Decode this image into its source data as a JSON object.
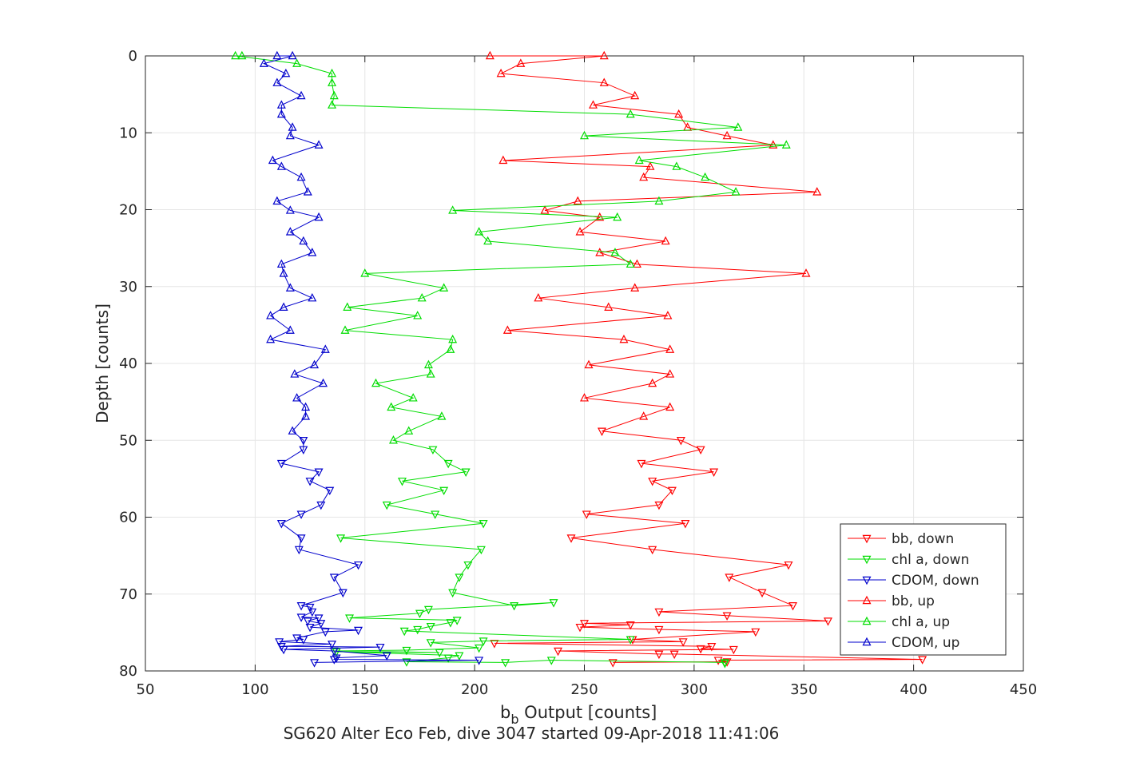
{
  "chart_data": {
    "type": "line",
    "title": "",
    "xlabel_main": "b",
    "xlabel_sub": "b",
    "xlabel_rest": " Output [counts]",
    "ylabel": "Depth [counts]",
    "footer": "SG620 Alter Eco Feb, dive 3047 started 09-Apr-2018 11:41:06",
    "xlim": [
      50,
      450
    ],
    "ylim": [
      0,
      80
    ],
    "y_reversed": true,
    "grid": true,
    "legend_position": "bottom-right",
    "xticks": [
      "50",
      "100",
      "150",
      "200",
      "250",
      "300",
      "350",
      "400",
      "450"
    ],
    "yticks": [
      "0",
      "10",
      "20",
      "30",
      "40",
      "50",
      "60",
      "70",
      "80"
    ],
    "series": [
      {
        "name": "bb, down",
        "color": "#ff0000",
        "marker": "down-triangle",
        "points": [
          [
            207,
            0
          ],
          [
            259,
            0
          ],
          [
            221,
            1
          ],
          [
            212,
            2.3
          ],
          [
            259,
            3.5
          ],
          [
            273,
            5.2
          ],
          [
            254,
            6.4
          ],
          [
            293,
            7.6
          ],
          [
            297,
            9.3
          ],
          [
            315,
            10.4
          ],
          [
            336,
            11.6
          ],
          [
            213,
            13.6
          ],
          [
            280,
            14.4
          ],
          [
            277,
            15.8
          ],
          [
            356,
            17.7
          ],
          [
            247,
            18.9
          ],
          [
            232,
            20.1
          ],
          [
            257,
            21
          ],
          [
            248,
            22.9
          ],
          [
            287,
            24.1
          ],
          [
            257,
            25.6
          ],
          [
            274,
            27.1
          ],
          [
            351,
            28.3
          ],
          [
            273,
            30.2
          ],
          [
            229,
            31.5
          ],
          [
            261,
            32.7
          ],
          [
            288,
            33.8
          ],
          [
            215,
            35.7
          ],
          [
            268,
            36.9
          ],
          [
            289,
            38.2
          ],
          [
            252,
            40.2
          ],
          [
            289,
            41.4
          ],
          [
            281,
            42.6
          ],
          [
            250,
            44.5
          ],
          [
            289,
            45.7
          ],
          [
            277,
            46.9
          ],
          [
            258,
            48.8
          ],
          [
            294,
            50
          ],
          [
            303,
            51.2
          ],
          [
            276,
            53
          ],
          [
            309,
            54.1
          ],
          [
            281,
            55.3
          ],
          [
            290,
            56.5
          ],
          [
            284,
            58.4
          ],
          [
            251,
            59.6
          ],
          [
            296,
            60.8
          ],
          [
            244,
            62.7
          ],
          [
            281,
            64.2
          ],
          [
            343,
            66.2
          ],
          [
            316,
            67.8
          ],
          [
            331,
            69.8
          ],
          [
            345,
            71.5
          ],
          [
            284,
            72.3
          ],
          [
            315,
            72.8
          ],
          [
            361,
            73.5
          ],
          [
            250,
            73.8
          ],
          [
            271,
            74
          ],
          [
            248,
            74.3
          ],
          [
            284,
            74.6
          ],
          [
            328,
            74.9
          ],
          [
            272,
            75.9
          ],
          [
            295,
            76.2
          ],
          [
            209,
            76.4
          ],
          [
            308,
            76.8
          ],
          [
            303,
            77.1
          ],
          [
            318,
            77.2
          ],
          [
            238,
            77.4
          ],
          [
            284,
            77.8
          ],
          [
            291,
            77.8
          ],
          [
            404,
            78.5
          ],
          [
            311,
            78.6
          ],
          [
            315,
            78.8
          ],
          [
            263,
            78.9
          ]
        ]
      },
      {
        "name": "chl a, down",
        "color": "#00dd00",
        "marker": "down-triangle",
        "points": [
          [
            94,
            0
          ],
          [
            91,
            0
          ],
          [
            119,
            1
          ],
          [
            135,
            2.3
          ],
          [
            135,
            3.5
          ],
          [
            136,
            5.2
          ],
          [
            135,
            6.4
          ],
          [
            271,
            7.6
          ],
          [
            320,
            9.3
          ],
          [
            250,
            10.4
          ],
          [
            342,
            11.6
          ],
          [
            275,
            13.6
          ],
          [
            292,
            14.4
          ],
          [
            305,
            15.8
          ],
          [
            319,
            17.7
          ],
          [
            284,
            18.9
          ],
          [
            190,
            20.1
          ],
          [
            265,
            21
          ],
          [
            202,
            22.9
          ],
          [
            206,
            24.1
          ],
          [
            264,
            25.6
          ],
          [
            271,
            27.1
          ],
          [
            150,
            28.3
          ],
          [
            186,
            30.2
          ],
          [
            176,
            31.5
          ],
          [
            142,
            32.7
          ],
          [
            174,
            33.8
          ],
          [
            141,
            35.7
          ],
          [
            190,
            36.9
          ],
          [
            189,
            38.2
          ],
          [
            179,
            40.2
          ],
          [
            180,
            41.4
          ],
          [
            155,
            42.6
          ],
          [
            172,
            44.5
          ],
          [
            162,
            45.7
          ],
          [
            185,
            46.9
          ],
          [
            170,
            48.8
          ],
          [
            163,
            50
          ],
          [
            181,
            51.2
          ],
          [
            188,
            53
          ],
          [
            196,
            54.1
          ],
          [
            167,
            55.3
          ],
          [
            186,
            56.5
          ],
          [
            160,
            58.4
          ],
          [
            182,
            59.6
          ],
          [
            204,
            60.8
          ],
          [
            139,
            62.7
          ],
          [
            203,
            64.2
          ],
          [
            197,
            66.2
          ],
          [
            193,
            67.8
          ],
          [
            190,
            69.8
          ],
          [
            218,
            71.5
          ],
          [
            236,
            71.1
          ],
          [
            179,
            72
          ],
          [
            175,
            72.5
          ],
          [
            143,
            73.1
          ],
          [
            192,
            73.4
          ],
          [
            189,
            73.7
          ],
          [
            180,
            74.2
          ],
          [
            174,
            74.6
          ],
          [
            168,
            74.8
          ],
          [
            271,
            75.9
          ],
          [
            204,
            76.1
          ],
          [
            180,
            76.3
          ],
          [
            202,
            77
          ],
          [
            169,
            77.3
          ],
          [
            136,
            77.4
          ],
          [
            184,
            77.6
          ],
          [
            137,
            77.5
          ],
          [
            193,
            78
          ],
          [
            188,
            78.3
          ],
          [
            169,
            78.8
          ],
          [
            214,
            78.9
          ],
          [
            235,
            78.6
          ],
          [
            314,
            78.9
          ],
          [
            314,
            79
          ]
        ]
      },
      {
        "name": "CDOM, down",
        "color": "#0000cc",
        "marker": "down-triangle",
        "points": [
          [
            110,
            0
          ],
          [
            117,
            0
          ],
          [
            104,
            1
          ],
          [
            114,
            2.3
          ],
          [
            110,
            3.5
          ],
          [
            121,
            5.2
          ],
          [
            112,
            6.4
          ],
          [
            112,
            7.6
          ],
          [
            117,
            9.3
          ],
          [
            116,
            10.4
          ],
          [
            129,
            11.6
          ],
          [
            108,
            13.6
          ],
          [
            112,
            14.4
          ],
          [
            121,
            15.8
          ],
          [
            124,
            17.7
          ],
          [
            110,
            18.9
          ],
          [
            116,
            20.1
          ],
          [
            129,
            21
          ],
          [
            116,
            22.9
          ],
          [
            122,
            24.1
          ],
          [
            126,
            25.6
          ],
          [
            112,
            27.1
          ],
          [
            113,
            28.3
          ],
          [
            116,
            30.2
          ],
          [
            126,
            31.5
          ],
          [
            113,
            32.7
          ],
          [
            107,
            33.8
          ],
          [
            116,
            35.7
          ],
          [
            107,
            36.9
          ],
          [
            132,
            38.2
          ],
          [
            127,
            40.2
          ],
          [
            118,
            41.4
          ],
          [
            131,
            42.6
          ],
          [
            119,
            44.5
          ],
          [
            123,
            45.7
          ],
          [
            123,
            46.9
          ],
          [
            117,
            48.8
          ],
          [
            122,
            50
          ],
          [
            122,
            51.2
          ],
          [
            112,
            53
          ],
          [
            129,
            54.1
          ],
          [
            125,
            55.3
          ],
          [
            134,
            56.5
          ],
          [
            130,
            58.4
          ],
          [
            121,
            59.6
          ],
          [
            112,
            60.8
          ],
          [
            121,
            62.7
          ],
          [
            120,
            64.2
          ],
          [
            147,
            66.2
          ],
          [
            136,
            67.8
          ],
          [
            140,
            69.8
          ],
          [
            121,
            71.5
          ],
          [
            125,
            71.7
          ],
          [
            126,
            72.3
          ],
          [
            121,
            73
          ],
          [
            129,
            73.1
          ],
          [
            124,
            73.5
          ],
          [
            130,
            73.8
          ],
          [
            125,
            74.3
          ],
          [
            147,
            74.7
          ],
          [
            132,
            74.9
          ],
          [
            119,
            75.7
          ],
          [
            122,
            75.9
          ],
          [
            111,
            76.2
          ],
          [
            135,
            76.5
          ],
          [
            112,
            76.8
          ],
          [
            157,
            76.9
          ],
          [
            113,
            77.2
          ],
          [
            136,
            77.4
          ],
          [
            160,
            78
          ],
          [
            137,
            78.3
          ],
          [
            136,
            78.5
          ],
          [
            202,
            78.6
          ],
          [
            127,
            78.9
          ]
        ]
      },
      {
        "name": "bb, up",
        "color": "#ff0000",
        "marker": "up-triangle",
        "points": [],
        "link_to": 0
      },
      {
        "name": "chl a, up",
        "color": "#00dd00",
        "marker": "up-triangle",
        "points": [],
        "link_to": 1
      },
      {
        "name": "CDOM, up",
        "color": "#0000cc",
        "marker": "up-triangle",
        "points": [],
        "link_to": 2
      }
    ]
  }
}
